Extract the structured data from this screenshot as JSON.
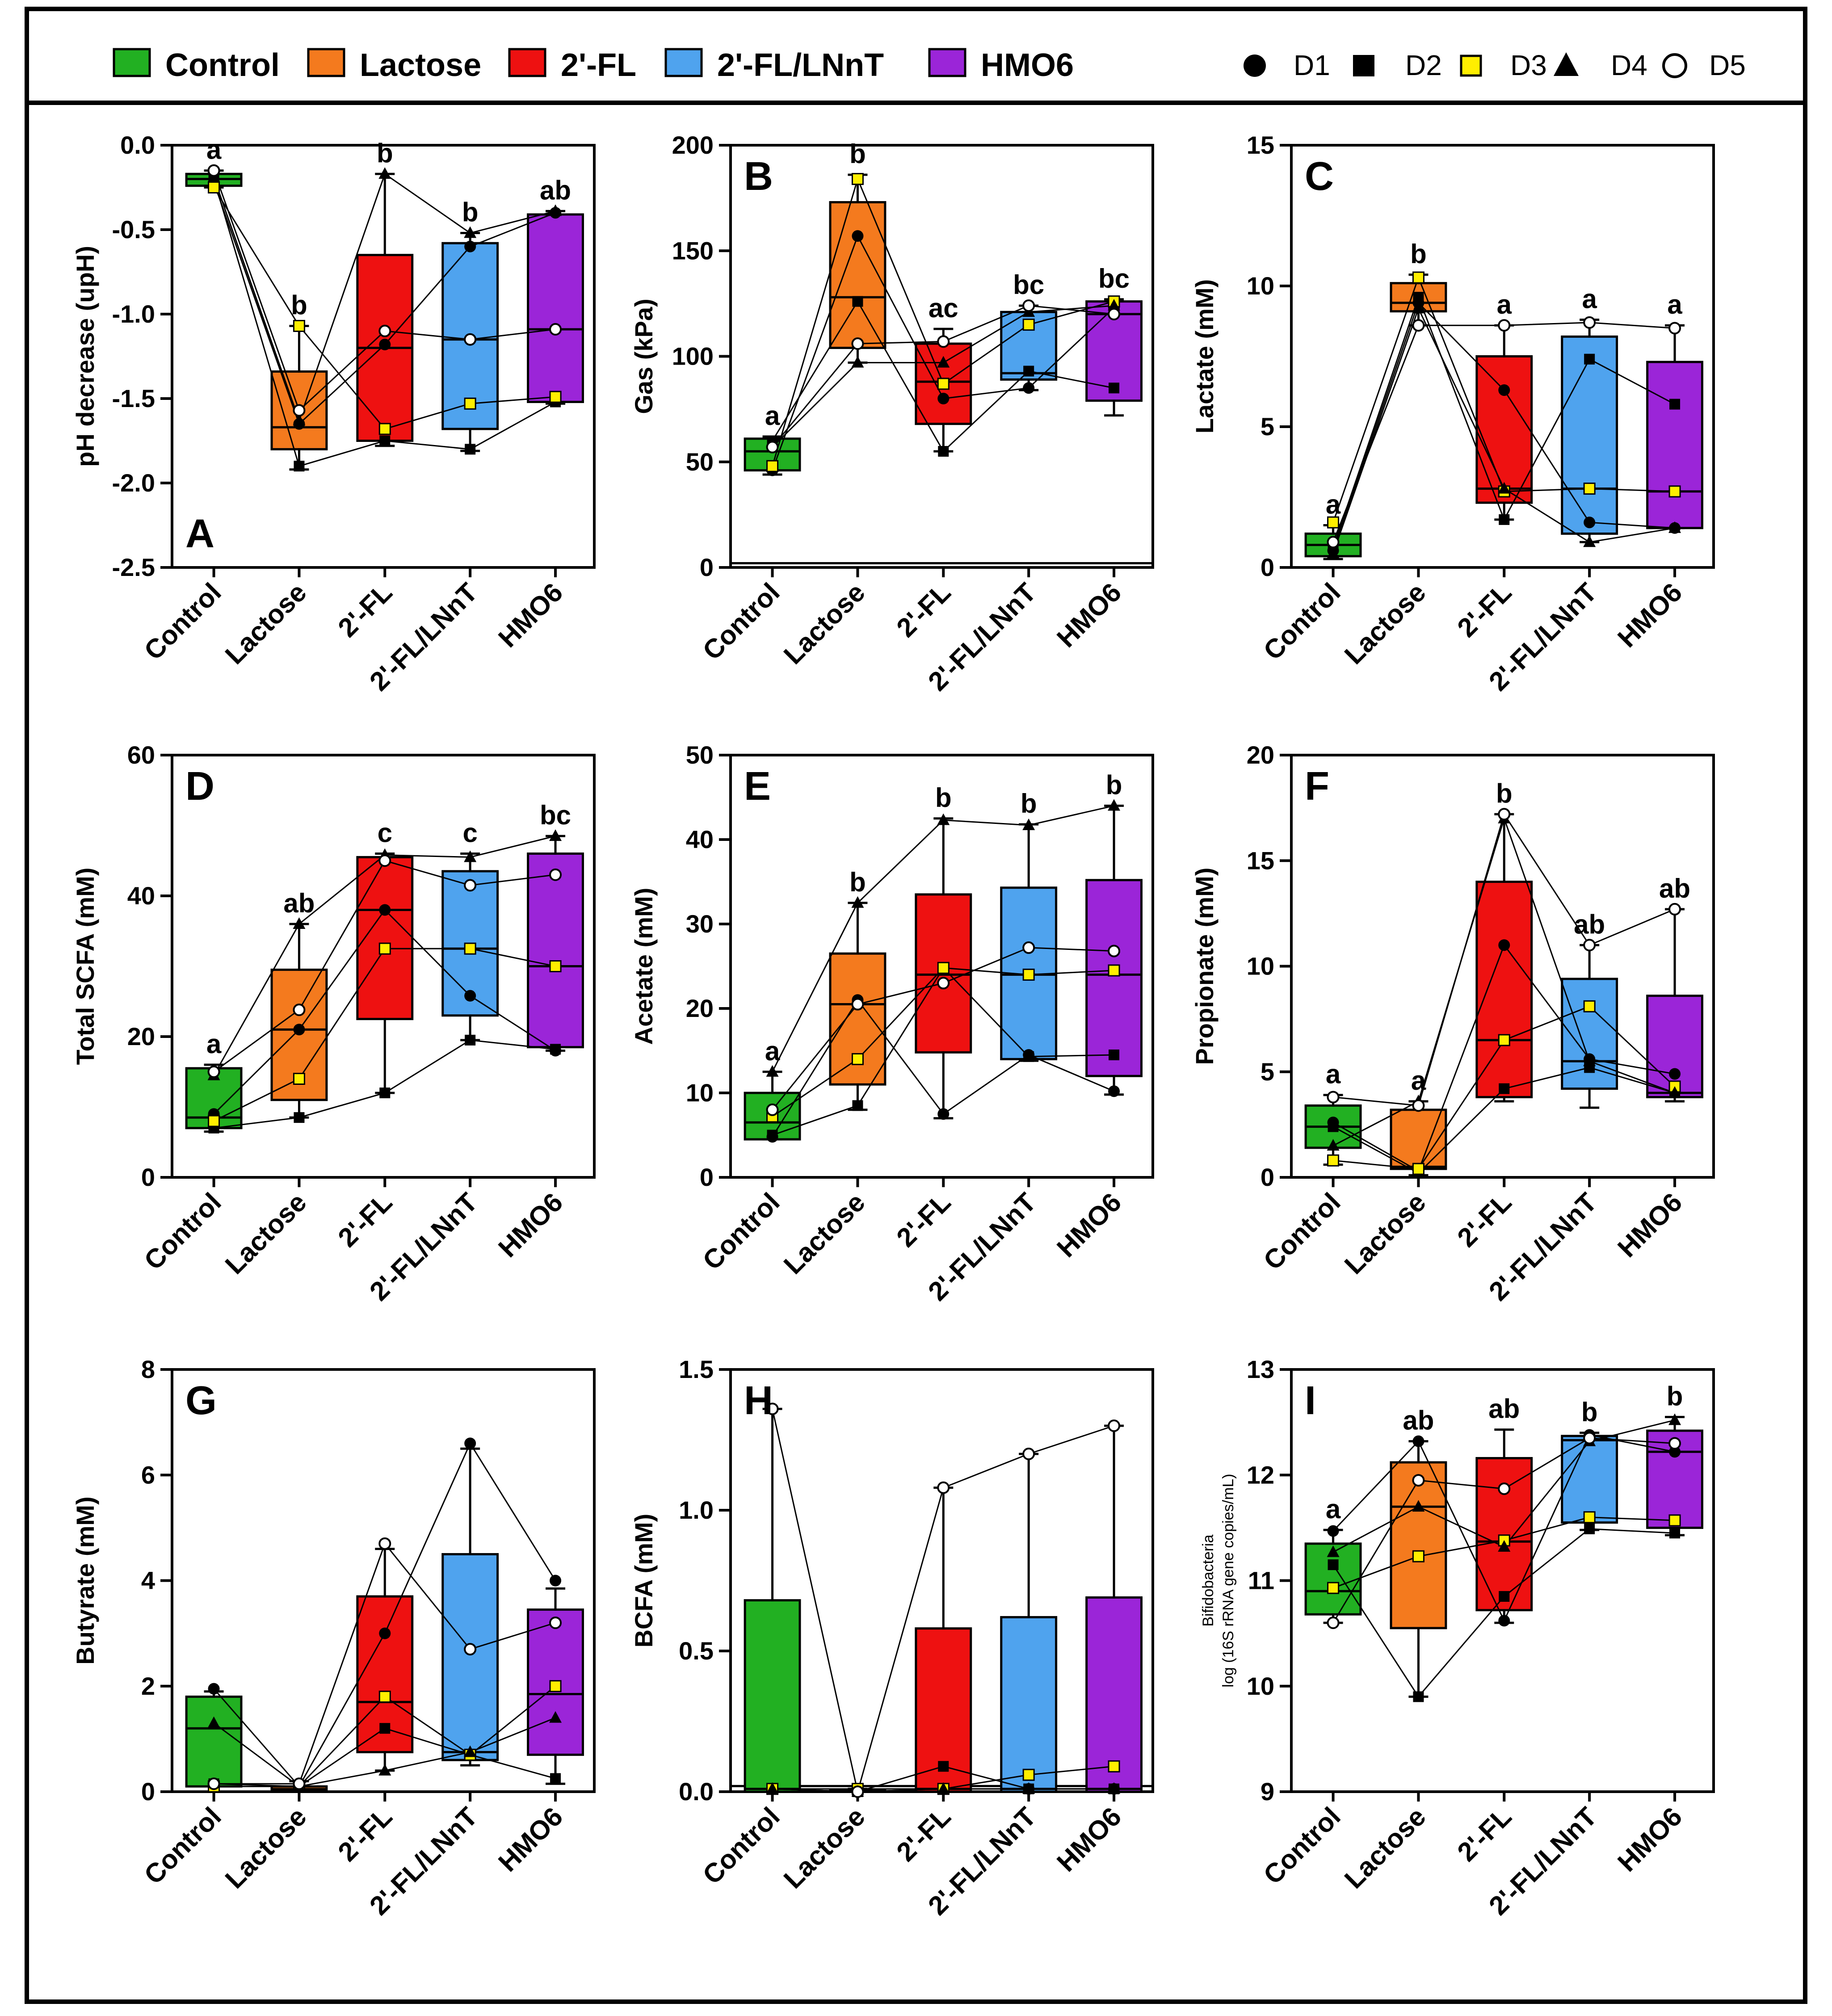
{
  "legend": {
    "groups": [
      {
        "label": "Control",
        "color": "#22b022"
      },
      {
        "label": "Lactose",
        "color": "#f47a1e"
      },
      {
        "label": "2'-FL",
        "color": "#ee1111"
      },
      {
        "label": "2'-FL/LNnT",
        "color": "#4fa3ee"
      },
      {
        "label": "HMO6",
        "color": "#9b25d8"
      }
    ],
    "donors": [
      {
        "label": "D1",
        "symbol": "filled-circle"
      },
      {
        "label": "D2",
        "symbol": "filled-square"
      },
      {
        "label": "D3",
        "symbol": "yellow-square"
      },
      {
        "label": "D4",
        "symbol": "filled-triangle"
      },
      {
        "label": "D5",
        "symbol": "open-circle"
      }
    ]
  },
  "colors": {
    "Control": "#22b022",
    "Lactose": "#f47a1e",
    "2'-FL": "#ee1111",
    "2'-FL/LNnT": "#4fa3ee",
    "HMO6": "#9b25d8",
    "D3": "#ffee00"
  },
  "chart_data": [
    {
      "panel": "A",
      "type": "box",
      "ylabel": "pH decrease (upH)",
      "ylim": [
        -2.5,
        0.0
      ],
      "yticks": [
        0.0,
        -0.5,
        -1.0,
        -1.5,
        -2.0,
        -2.5
      ],
      "ytick_labels": [
        "0.0",
        "-0.5",
        "-1.0",
        "-1.5",
        "-2.0",
        "-2.5"
      ],
      "categories": [
        "Control",
        "Lactose",
        "2'-FL",
        "2'-FL/LNnT",
        "HMO6"
      ],
      "boxes": [
        {
          "min": -0.25,
          "q1": -0.24,
          "median": -0.2,
          "q3": -0.17,
          "max": -0.15
        },
        {
          "min": -1.92,
          "q1": -1.8,
          "median": -1.67,
          "q3": -1.34,
          "max": -1.07
        },
        {
          "min": -1.78,
          "q1": -1.75,
          "median": -1.2,
          "q3": -0.65,
          "max": -0.17
        },
        {
          "min": -1.81,
          "q1": -1.68,
          "median": -1.15,
          "q3": -0.58,
          "max": -0.52
        },
        {
          "min": -1.53,
          "q1": -1.52,
          "median": -1.09,
          "q3": -0.41,
          "max": -0.39
        }
      ],
      "letters": [
        "a",
        "b",
        "b",
        "b",
        "ab"
      ],
      "donors": {
        "D1": [
          -0.22,
          -1.65,
          -1.18,
          -0.6,
          -0.4
        ],
        "D2": [
          -0.2,
          -1.9,
          -1.75,
          -1.8,
          -1.52
        ],
        "D3": [
          -0.25,
          -1.07,
          -1.68,
          -1.53,
          -1.49
        ],
        "D4": [
          -0.19,
          -1.63,
          -0.17,
          -0.52,
          -0.39
        ],
        "D5": [
          -0.15,
          -1.57,
          -1.1,
          -1.15,
          -1.09
        ]
      }
    },
    {
      "panel": "B",
      "type": "box",
      "ylabel": "Gas (kPa)",
      "ylim": [
        0,
        200
      ],
      "yticks": [
        0,
        50,
        100,
        150,
        200
      ],
      "ytick_labels": [
        "0",
        "50",
        "100",
        "150",
        "200"
      ],
      "baseline": 2,
      "categories": [
        "Control",
        "Lactose",
        "2'-FL",
        "2'-FL/LNnT",
        "HMO6"
      ],
      "boxes": [
        {
          "min": 44,
          "q1": 46,
          "median": 55,
          "q3": 61,
          "max": 62
        },
        {
          "min": 97,
          "q1": 104,
          "median": 128,
          "q3": 173,
          "max": 186
        },
        {
          "min": 55,
          "q1": 68,
          "median": 88,
          "q3": 106,
          "max": 113
        },
        {
          "min": 84,
          "q1": 89,
          "median": 92,
          "q3": 121,
          "max": 124
        },
        {
          "min": 72,
          "q1": 79,
          "median": 120,
          "q3": 126,
          "max": 127
        }
      ],
      "letters": [
        "a",
        "b",
        "ac",
        "bc",
        "bc"
      ],
      "donors": {
        "D1": [
          46,
          157,
          80,
          85,
          123
        ],
        "D2": [
          60,
          126,
          55,
          93,
          85
        ],
        "D3": [
          48,
          184,
          87,
          115,
          126
        ],
        "D4": [
          57,
          97,
          97,
          121,
          124
        ],
        "D5": [
          57,
          106,
          107,
          124,
          120
        ]
      }
    },
    {
      "panel": "C",
      "type": "box",
      "ylabel": "Lactate (mM)",
      "ylim": [
        0,
        15
      ],
      "yticks": [
        0,
        5,
        10,
        15
      ],
      "ytick_labels": [
        "0",
        "5",
        "10",
        "15"
      ],
      "categories": [
        "Control",
        "Lactose",
        "2'-FL",
        "2'-FL/LNnT",
        "HMO6"
      ],
      "boxes": [
        {
          "min": 0.3,
          "q1": 0.4,
          "median": 0.8,
          "q3": 1.2,
          "max": 1.5
        },
        {
          "min": 8.6,
          "q1": 9.1,
          "median": 9.4,
          "q3": 10.1,
          "max": 10.4
        },
        {
          "min": 1.7,
          "q1": 2.3,
          "median": 2.8,
          "q3": 7.5,
          "max": 8.6
        },
        {
          "min": 0.9,
          "q1": 1.2,
          "median": 2.8,
          "q3": 8.2,
          "max": 8.8
        },
        {
          "min": 1.4,
          "q1": 1.4,
          "median": 2.7,
          "q3": 7.3,
          "max": 8.6
        }
      ],
      "letters": [
        "a",
        "b",
        "a",
        "a",
        "a"
      ],
      "donors": {
        "D1": [
          0.6,
          9.4,
          6.3,
          1.6,
          1.4
        ],
        "D2": [
          0.7,
          9.6,
          1.7,
          7.4,
          5.8
        ],
        "D3": [
          1.6,
          10.3,
          2.7,
          2.8,
          2.7
        ],
        "D4": [
          0.5,
          9.2,
          2.8,
          0.9,
          1.4
        ],
        "D5": [
          0.9,
          8.6,
          8.6,
          8.7,
          8.5
        ]
      }
    },
    {
      "panel": "D",
      "type": "box",
      "ylabel": "Total SCFA (mM)",
      "ylim": [
        0,
        60
      ],
      "yticks": [
        0,
        20,
        40,
        60
      ],
      "ytick_labels": [
        "0",
        "20",
        "40",
        "60"
      ],
      "categories": [
        "Control",
        "Lactose",
        "2'-FL",
        "2'-FL/LNnT",
        "HMO6"
      ],
      "boxes": [
        {
          "min": 6.5,
          "q1": 7.0,
          "median": 8.5,
          "q3": 15.5,
          "max": 16.0
        },
        {
          "min": 8.5,
          "q1": 11.0,
          "median": 21.0,
          "q3": 29.5,
          "max": 36.0
        },
        {
          "min": 12.0,
          "q1": 22.5,
          "median": 38.0,
          "q3": 45.5,
          "max": 46.0
        },
        {
          "min": 19.5,
          "q1": 23.0,
          "median": 32.5,
          "q3": 43.5,
          "max": 46.0
        },
        {
          "min": 18.0,
          "q1": 18.5,
          "median": 30.0,
          "q3": 46.0,
          "max": 48.5
        }
      ],
      "letters": [
        "a",
        "ab",
        "c",
        "c",
        "bc"
      ],
      "donors": {
        "D1": [
          9.0,
          21.0,
          38.0,
          25.8,
          18.0
        ],
        "D2": [
          7.0,
          8.5,
          12.0,
          19.5,
          18.2
        ],
        "D3": [
          8.0,
          14.0,
          32.5,
          32.5,
          30.0
        ],
        "D4": [
          14.5,
          36.0,
          45.8,
          45.5,
          48.5
        ],
        "D5": [
          15.0,
          23.8,
          45.0,
          41.5,
          43.0
        ]
      }
    },
    {
      "panel": "E",
      "type": "box",
      "ylabel": "Acetate (mM)",
      "ylim": [
        0,
        50
      ],
      "yticks": [
        0,
        10,
        20,
        30,
        40,
        50
      ],
      "ytick_labels": [
        "0",
        "10",
        "20",
        "30",
        "40",
        "50"
      ],
      "categories": [
        "Control",
        "Lactose",
        "2'-FL",
        "2'-FL/LNnT",
        "HMO6"
      ],
      "boxes": [
        {
          "min": 4.5,
          "q1": 4.5,
          "median": 6.5,
          "q3": 10.0,
          "max": 12.5
        },
        {
          "min": 8.0,
          "q1": 11.0,
          "median": 20.5,
          "q3": 26.5,
          "max": 32.5
        },
        {
          "min": 7.0,
          "q1": 14.8,
          "median": 24.0,
          "q3": 33.5,
          "max": 42.5
        },
        {
          "min": 13.8,
          "q1": 14.0,
          "median": 24.0,
          "q3": 34.3,
          "max": 41.8
        },
        {
          "min": 9.8,
          "q1": 12.0,
          "median": 24.0,
          "q3": 35.2,
          "max": 44.0
        }
      ],
      "letters": [
        "a",
        "b",
        "b",
        "b",
        "b"
      ],
      "donors": {
        "D1": [
          4.8,
          21.0,
          7.5,
          14.5,
          10.2
        ],
        "D2": [
          5.0,
          8.5,
          24.8,
          14.3,
          14.5
        ],
        "D3": [
          7.2,
          14.0,
          24.8,
          24.0,
          24.5
        ],
        "D4": [
          12.5,
          32.5,
          42.3,
          41.7,
          44.0
        ],
        "D5": [
          8.0,
          20.5,
          23.0,
          27.2,
          26.8
        ]
      }
    },
    {
      "panel": "F",
      "type": "box",
      "ylabel": "Propionate (mM)",
      "ylim": [
        0,
        20
      ],
      "yticks": [
        0,
        5,
        10,
        15,
        20
      ],
      "ytick_labels": [
        "0",
        "5",
        "10",
        "15",
        "20"
      ],
      "categories": [
        "Control",
        "Lactose",
        "2'-FL",
        "2'-FL/LNnT",
        "HMO6"
      ],
      "boxes": [
        {
          "min": 0.6,
          "q1": 1.4,
          "median": 2.4,
          "q3": 3.4,
          "max": 3.9
        },
        {
          "min": 0.1,
          "q1": 0.4,
          "median": 0.5,
          "q3": 3.2,
          "max": 3.6
        },
        {
          "min": 3.6,
          "q1": 3.8,
          "median": 6.5,
          "q3": 14.0,
          "max": 17.2
        },
        {
          "min": 3.3,
          "q1": 4.2,
          "median": 5.5,
          "q3": 9.4,
          "max": 11.0
        },
        {
          "min": 3.6,
          "q1": 3.8,
          "median": 4.0,
          "q3": 8.6,
          "max": 12.7
        }
      ],
      "letters": [
        "a",
        "a",
        "b",
        "ab",
        "ab"
      ],
      "donors": {
        "D1": [
          2.6,
          0.3,
          11.0,
          5.6,
          4.9
        ],
        "D2": [
          2.4,
          0.2,
          4.2,
          5.2,
          4.0
        ],
        "D3": [
          0.8,
          0.4,
          6.5,
          8.1,
          4.3
        ],
        "D4": [
          1.5,
          3.6,
          17.0,
          5.5,
          4.0
        ],
        "D5": [
          3.8,
          3.4,
          17.2,
          11.0,
          12.7
        ]
      }
    },
    {
      "panel": "G",
      "type": "box",
      "ylabel": "Butyrate (mM)",
      "ylim": [
        0,
        8
      ],
      "yticks": [
        0,
        2,
        4,
        6,
        8
      ],
      "ytick_labels": [
        "0",
        "2",
        "4",
        "6",
        "8"
      ],
      "categories": [
        "Control",
        "Lactose",
        "2'-FL",
        "2'-FL/LNnT",
        "HMO6"
      ],
      "boxes": [
        {
          "min": 0.0,
          "q1": 0.1,
          "median": 1.2,
          "q3": 1.8,
          "max": 1.9
        },
        {
          "min": 0.0,
          "q1": 0.02,
          "median": 0.05,
          "q3": 0.1,
          "max": 0.2
        },
        {
          "min": 0.4,
          "q1": 0.75,
          "median": 1.7,
          "q3": 3.7,
          "max": 4.6
        },
        {
          "min": 0.5,
          "q1": 0.6,
          "median": 0.75,
          "q3": 4.5,
          "max": 6.5
        },
        {
          "min": 0.15,
          "q1": 0.7,
          "median": 1.85,
          "q3": 3.45,
          "max": 3.85
        }
      ],
      "letters": [
        "",
        "",
        "",
        "",
        ""
      ],
      "donors": {
        "D1": [
          1.95,
          0.1,
          3.0,
          6.6,
          4.0
        ],
        "D2": [
          0.15,
          0.1,
          1.2,
          0.7,
          0.25
        ],
        "D3": [
          0.1,
          0.1,
          1.8,
          0.7,
          2.0
        ],
        "D4": [
          1.3,
          0.1,
          0.4,
          0.75,
          1.4
        ],
        "D5": [
          0.15,
          0.15,
          4.7,
          2.7,
          3.2
        ]
      }
    },
    {
      "panel": "H",
      "type": "box",
      "ylabel": "BCFA (mM)",
      "ylim": [
        0,
        1.5
      ],
      "yticks": [
        0,
        0.5,
        1.0,
        1.5
      ],
      "ytick_labels": [
        "0.0",
        "0.5",
        "1.0",
        "1.5"
      ],
      "baseline": 0.02,
      "categories": [
        "Control",
        "Lactose",
        "2'-FL",
        "2'-FL/LNnT",
        "HMO6"
      ],
      "boxes": [
        {
          "min": 0.0,
          "q1": 0.0,
          "median": 0.01,
          "q3": 0.68,
          "max": 1.36
        },
        {
          "min": 0.0,
          "q1": 0.0,
          "median": 0.0,
          "q3": 0.005,
          "max": 0.01
        },
        {
          "min": 0.0,
          "q1": 0.0,
          "median": 0.01,
          "q3": 0.58,
          "max": 1.08
        },
        {
          "min": 0.0,
          "q1": 0.0,
          "median": 0.01,
          "q3": 0.62,
          "max": 1.2
        },
        {
          "min": 0.0,
          "q1": 0.0,
          "median": 0.01,
          "q3": 0.69,
          "max": 1.3
        }
      ],
      "letters": [
        "",
        "",
        "",
        "",
        ""
      ],
      "donors": {
        "D1": [
          0.01,
          0.0,
          0.01,
          0.01,
          0.01
        ],
        "D2": [
          0.01,
          0.0,
          0.09,
          0.01,
          0.01
        ],
        "D3": [
          0.01,
          0.01,
          0.01,
          0.06,
          0.09
        ],
        "D4": [
          0.01,
          0.0,
          0.01,
          0.01,
          0.01
        ],
        "D5": [
          1.36,
          0.0,
          1.08,
          1.2,
          1.3
        ]
      }
    },
    {
      "panel": "I",
      "type": "box",
      "ylabel": "Bifidobacteria",
      "ylabel2": "log (16S rRNA gene copies/mL)",
      "ylim": [
        9,
        13
      ],
      "yticks": [
        9,
        10,
        11,
        12,
        13
      ],
      "ytick_labels": [
        "9",
        "10",
        "11",
        "12",
        "13"
      ],
      "categories": [
        "Control",
        "Lactose",
        "2'-FL",
        "2'-FL/LNnT",
        "HMO6"
      ],
      "boxes": [
        {
          "min": 10.6,
          "q1": 10.68,
          "median": 10.9,
          "q3": 11.35,
          "max": 11.48
        },
        {
          "min": 9.9,
          "q1": 10.55,
          "median": 11.7,
          "q3": 12.12,
          "max": 12.32
        },
        {
          "min": 10.6,
          "q1": 10.72,
          "median": 11.37,
          "q3": 12.16,
          "max": 12.43
        },
        {
          "min": 11.48,
          "q1": 11.55,
          "median": 12.33,
          "q3": 12.37,
          "max": 12.4
        },
        {
          "min": 11.43,
          "q1": 11.5,
          "median": 12.22,
          "q3": 12.42,
          "max": 12.55
        }
      ],
      "letters": [
        "a",
        "ab",
        "ab",
        "b",
        "b"
      ],
      "donors": {
        "D1": [
          11.47,
          12.32,
          10.62,
          12.38,
          12.22
        ],
        "D2": [
          11.15,
          9.9,
          10.85,
          11.49,
          11.45
        ],
        "D3": [
          10.93,
          11.23,
          11.38,
          11.6,
          11.57
        ],
        "D4": [
          11.27,
          11.7,
          11.32,
          12.32,
          12.52
        ],
        "D5": [
          10.6,
          11.95,
          11.87,
          12.35,
          12.3
        ]
      }
    }
  ]
}
